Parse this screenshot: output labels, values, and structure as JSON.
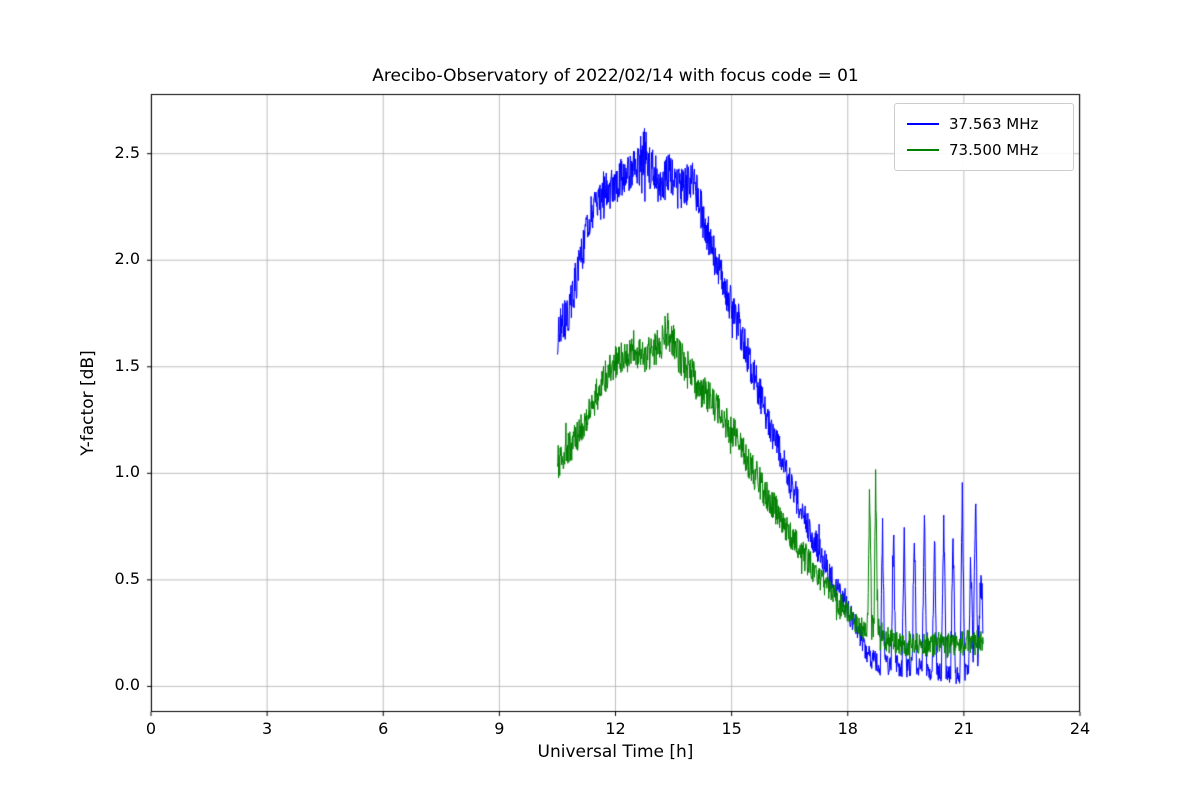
{
  "chart_data": {
    "type": "line",
    "title": "Arecibo-Observatory of 2022/02/14 with focus code = 01",
    "xlabel": "Universal Time [h]",
    "ylabel": "Y-factor [dB]",
    "xlim": [
      0,
      24
    ],
    "ylim": [
      -0.12,
      2.78
    ],
    "xticks": [
      0,
      3,
      6,
      9,
      12,
      15,
      18,
      21,
      24
    ],
    "xtick_labels": [
      "0",
      "3",
      "6",
      "9",
      "12",
      "15",
      "18",
      "21",
      "24"
    ],
    "yticks": [
      0.0,
      0.5,
      1.0,
      1.5,
      2.0,
      2.5
    ],
    "ytick_labels": [
      "0.0",
      "0.5",
      "1.0",
      "1.5",
      "2.0",
      "2.5"
    ],
    "grid": true,
    "grid_color": "#b0b0b0",
    "background": "#ffffff",
    "legend_position": "upper right",
    "series": [
      {
        "name": "37.563 MHz",
        "color": "#0000ff",
        "points": [
          [
            10.5,
            1.66,
            0.1
          ],
          [
            10.65,
            1.7,
            0.1
          ],
          [
            10.8,
            1.76,
            0.1
          ],
          [
            10.95,
            1.88,
            0.1
          ],
          [
            11.1,
            2.0,
            0.1
          ],
          [
            11.25,
            2.12,
            0.1
          ],
          [
            11.4,
            2.22,
            0.1
          ],
          [
            11.55,
            2.3,
            0.09
          ],
          [
            11.7,
            2.33,
            0.09
          ],
          [
            11.85,
            2.32,
            0.09
          ],
          [
            12.0,
            2.36,
            0.09
          ],
          [
            12.15,
            2.38,
            0.1
          ],
          [
            12.3,
            2.4,
            0.1
          ],
          [
            12.45,
            2.44,
            0.11
          ],
          [
            12.6,
            2.46,
            0.12
          ],
          [
            12.75,
            2.5,
            0.13
          ],
          [
            12.9,
            2.45,
            0.12
          ],
          [
            13.05,
            2.38,
            0.11
          ],
          [
            13.2,
            2.32,
            0.1
          ],
          [
            13.35,
            2.42,
            0.12
          ],
          [
            13.5,
            2.36,
            0.1
          ],
          [
            13.65,
            2.33,
            0.1
          ],
          [
            13.8,
            2.34,
            0.1
          ],
          [
            13.95,
            2.38,
            0.1
          ],
          [
            14.1,
            2.32,
            0.1
          ],
          [
            14.25,
            2.2,
            0.1
          ],
          [
            14.4,
            2.12,
            0.09
          ],
          [
            14.55,
            2.02,
            0.09
          ],
          [
            14.7,
            1.94,
            0.09
          ],
          [
            14.85,
            1.86,
            0.09
          ],
          [
            15.0,
            1.78,
            0.09
          ],
          [
            15.2,
            1.68,
            0.09
          ],
          [
            15.4,
            1.56,
            0.09
          ],
          [
            15.6,
            1.45,
            0.09
          ],
          [
            15.8,
            1.33,
            0.08
          ],
          [
            16.0,
            1.22,
            0.08
          ],
          [
            16.2,
            1.12,
            0.08
          ],
          [
            16.4,
            1.02,
            0.08
          ],
          [
            16.6,
            0.92,
            0.08
          ],
          [
            16.8,
            0.82,
            0.07
          ],
          [
            17.0,
            0.74,
            0.07
          ],
          [
            17.2,
            0.66,
            0.07
          ],
          [
            17.4,
            0.58,
            0.07
          ],
          [
            17.6,
            0.5,
            0.06
          ],
          [
            17.8,
            0.43,
            0.06
          ],
          [
            18.0,
            0.36,
            0.06
          ],
          [
            18.2,
            0.28,
            0.05
          ],
          [
            18.4,
            0.2,
            0.05
          ],
          [
            18.55,
            0.14,
            0.05
          ],
          [
            18.75,
            0.11,
            0.05
          ],
          [
            18.84,
            0.1,
            0.05
          ],
          [
            18.9,
            0.72,
            0.1
          ],
          [
            18.96,
            0.1,
            0.05
          ],
          [
            19.12,
            0.1,
            0.05
          ],
          [
            19.18,
            0.76,
            0.1
          ],
          [
            19.24,
            0.1,
            0.05
          ],
          [
            19.4,
            0.09,
            0.05
          ],
          [
            19.46,
            0.7,
            0.1
          ],
          [
            19.52,
            0.09,
            0.05
          ],
          [
            19.66,
            0.09,
            0.05
          ],
          [
            19.72,
            0.74,
            0.1
          ],
          [
            19.78,
            0.09,
            0.05
          ],
          [
            19.92,
            0.08,
            0.05
          ],
          [
            19.98,
            0.78,
            0.1
          ],
          [
            20.04,
            0.08,
            0.05
          ],
          [
            20.18,
            0.08,
            0.05
          ],
          [
            20.24,
            0.7,
            0.1
          ],
          [
            20.3,
            0.08,
            0.05
          ],
          [
            20.42,
            0.06,
            0.05
          ],
          [
            20.48,
            0.83,
            0.1
          ],
          [
            20.54,
            0.07,
            0.05
          ],
          [
            20.66,
            0.06,
            0.05
          ],
          [
            20.72,
            0.76,
            0.1
          ],
          [
            20.78,
            0.06,
            0.05
          ],
          [
            20.9,
            0.05,
            0.04
          ],
          [
            20.96,
            0.9,
            0.08
          ],
          [
            21.02,
            0.06,
            0.05
          ],
          [
            21.12,
            0.08,
            0.05
          ],
          [
            21.18,
            0.62,
            0.1
          ],
          [
            21.24,
            0.1,
            0.05
          ],
          [
            21.3,
            0.9,
            0.08
          ],
          [
            21.36,
            0.12,
            0.06
          ],
          [
            21.44,
            0.55,
            0.1
          ],
          [
            21.5,
            0.25,
            0.08
          ]
        ]
      },
      {
        "name": "73.500 MHz",
        "color": "#008000",
        "points": [
          [
            10.5,
            1.05,
            0.08
          ],
          [
            10.65,
            1.08,
            0.08
          ],
          [
            10.8,
            1.12,
            0.08
          ],
          [
            10.95,
            1.16,
            0.08
          ],
          [
            11.1,
            1.21,
            0.08
          ],
          [
            11.25,
            1.26,
            0.08
          ],
          [
            11.4,
            1.32,
            0.08
          ],
          [
            11.55,
            1.38,
            0.08
          ],
          [
            11.7,
            1.44,
            0.08
          ],
          [
            11.85,
            1.48,
            0.08
          ],
          [
            12.0,
            1.52,
            0.08
          ],
          [
            12.2,
            1.55,
            0.08
          ],
          [
            12.4,
            1.55,
            0.08
          ],
          [
            12.6,
            1.57,
            0.08
          ],
          [
            12.8,
            1.55,
            0.08
          ],
          [
            13.0,
            1.58,
            0.08
          ],
          [
            13.2,
            1.62,
            0.09
          ],
          [
            13.35,
            1.67,
            0.1
          ],
          [
            13.5,
            1.63,
            0.09
          ],
          [
            13.65,
            1.55,
            0.09
          ],
          [
            13.8,
            1.5,
            0.09
          ],
          [
            14.0,
            1.45,
            0.09
          ],
          [
            14.2,
            1.4,
            0.09
          ],
          [
            14.4,
            1.36,
            0.08
          ],
          [
            14.6,
            1.31,
            0.08
          ],
          [
            14.8,
            1.26,
            0.08
          ],
          [
            15.0,
            1.2,
            0.08
          ],
          [
            15.25,
            1.12,
            0.08
          ],
          [
            15.5,
            1.03,
            0.08
          ],
          [
            15.75,
            0.95,
            0.08
          ],
          [
            16.0,
            0.87,
            0.08
          ],
          [
            16.25,
            0.79,
            0.07
          ],
          [
            16.5,
            0.72,
            0.07
          ],
          [
            16.75,
            0.65,
            0.07
          ],
          [
            17.0,
            0.58,
            0.07
          ],
          [
            17.25,
            0.52,
            0.06
          ],
          [
            17.5,
            0.46,
            0.06
          ],
          [
            17.75,
            0.4,
            0.06
          ],
          [
            18.0,
            0.34,
            0.06
          ],
          [
            18.25,
            0.29,
            0.05
          ],
          [
            18.45,
            0.26,
            0.05
          ],
          [
            18.52,
            0.3,
            0.06
          ],
          [
            18.56,
            0.95,
            0.1
          ],
          [
            18.62,
            0.3,
            0.07
          ],
          [
            18.68,
            0.28,
            0.06
          ],
          [
            18.72,
            1.0,
            0.08
          ],
          [
            18.78,
            0.3,
            0.07
          ],
          [
            18.9,
            0.24,
            0.06
          ],
          [
            19.1,
            0.21,
            0.06
          ],
          [
            19.4,
            0.2,
            0.06
          ],
          [
            19.7,
            0.21,
            0.06
          ],
          [
            20.0,
            0.19,
            0.06
          ],
          [
            20.3,
            0.21,
            0.06
          ],
          [
            20.6,
            0.19,
            0.06
          ],
          [
            20.9,
            0.2,
            0.06
          ],
          [
            21.2,
            0.21,
            0.06
          ],
          [
            21.5,
            0.2,
            0.06
          ]
        ]
      }
    ]
  }
}
